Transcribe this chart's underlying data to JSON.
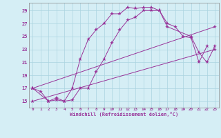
{
  "background_color": "#d5eef5",
  "grid_color": "#aad4e0",
  "line_color": "#993399",
  "marker_size": 2.5,
  "xlabel": "Windchill (Refroidissement éolien,°C)",
  "ylabel_ticks": [
    15,
    17,
    19,
    21,
    23,
    25,
    27,
    29
  ],
  "xlim": [
    -0.5,
    23.5
  ],
  "ylim": [
    14.0,
    30.2
  ],
  "xticks": [
    0,
    1,
    2,
    3,
    4,
    5,
    6,
    7,
    8,
    9,
    10,
    11,
    12,
    13,
    14,
    15,
    16,
    17,
    18,
    19,
    20,
    21,
    22,
    23
  ],
  "lines": [
    {
      "x": [
        0,
        1,
        2,
        3,
        4,
        5,
        6,
        7,
        8,
        9,
        10,
        11,
        12,
        13,
        14,
        15,
        16,
        17,
        18,
        19,
        20,
        21,
        22
      ],
      "y": [
        17.0,
        16.5,
        15.0,
        15.5,
        15.0,
        17.0,
        21.5,
        24.5,
        26.0,
        27.0,
        28.5,
        28.5,
        29.5,
        29.3,
        29.5,
        29.5,
        29.0,
        27.0,
        26.5,
        25.0,
        24.8,
        21.0,
        23.5
      ]
    },
    {
      "x": [
        0,
        2,
        3,
        4,
        5,
        6,
        7,
        8,
        9,
        10,
        11,
        12,
        13,
        14,
        15,
        16,
        17,
        20,
        21,
        22,
        23
      ],
      "y": [
        17.0,
        15.0,
        15.2,
        15.0,
        15.2,
        17.0,
        17.0,
        19.5,
        21.5,
        24.0,
        26.0,
        27.5,
        28.0,
        29.0,
        29.0,
        29.0,
        26.5,
        25.0,
        22.5,
        21.0,
        23.5
      ]
    },
    {
      "x": [
        0,
        23
      ],
      "y": [
        17.0,
        26.5
      ]
    },
    {
      "x": [
        0,
        23
      ],
      "y": [
        15.0,
        23.0
      ]
    }
  ]
}
